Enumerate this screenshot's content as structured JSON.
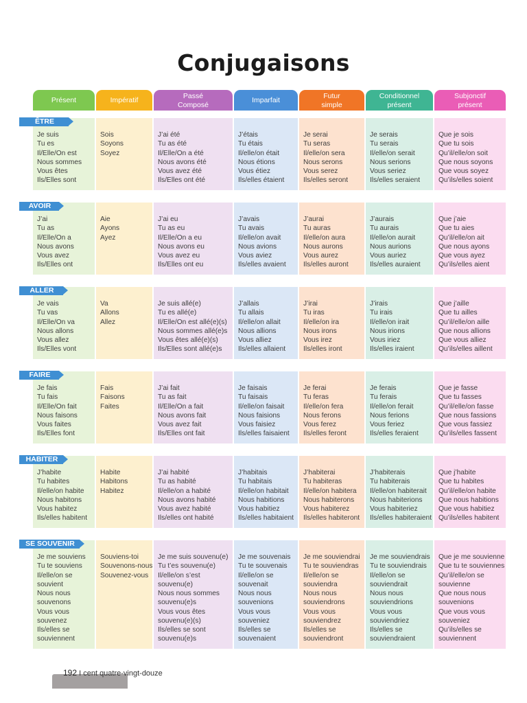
{
  "title": "Conjugaisons",
  "columns": [
    {
      "label": "Présent",
      "color": "#7ec850",
      "bg": "#e7f3d9"
    },
    {
      "label": "Impératif",
      "color": "#f6b31c",
      "bg": "#fdf0cf"
    },
    {
      "label": "Passé\nComposé",
      "color": "#b66bbd",
      "bg": "#efe0f1"
    },
    {
      "label": "Imparfait",
      "color": "#4a8fd8",
      "bg": "#dbe7f6"
    },
    {
      "label": "Futur\nsimple",
      "color": "#f07526",
      "bg": "#fde2cf"
    },
    {
      "label": "Conditionnel\nprésent",
      "color": "#3fb593",
      "bg": "#d9efe6"
    },
    {
      "label": "Subjonctif\nprésent",
      "color": "#ea5db6",
      "bg": "#fbdcf0"
    }
  ],
  "verbs": [
    {
      "name": "ÊTRE",
      "forms": [
        [
          "Je suis",
          "Tu es",
          "Il/Elle/On est",
          "Nous sommes",
          "Vous êtes",
          "Ils/Elles sont"
        ],
        [
          "Sois",
          "Soyons",
          "Soyez"
        ],
        [
          "J’ai été",
          "Tu as été",
          "Il/Elle/On a été",
          "Nous avons été",
          "Vous avez été",
          "Ils/Elles ont été"
        ],
        [
          "J’étais",
          "Tu étais",
          "Il/elle/on était",
          "Nous étions",
          "Vous étiez",
          "Ils/elles étaient"
        ],
        [
          "Je serai",
          "Tu seras",
          "Il/elle/on sera",
          "Nous serons",
          "Vous serez",
          "Ils/elles seront"
        ],
        [
          "Je serais",
          "Tu serais",
          "Il/elle/on serait",
          "Nous serions",
          "Vous seriez",
          "Ils/elles seraient"
        ],
        [
          "Que je sois",
          "Que tu sois",
          "Qu’il/elle/on soit",
          "Que nous soyons",
          "Que vous soyez",
          "Qu’ils/elles soient"
        ]
      ]
    },
    {
      "name": "AVOIR",
      "forms": [
        [
          "J’ai",
          "Tu as",
          "Il/Elle/On a",
          "Nous avons",
          "Vous avez",
          "Ils/Elles ont"
        ],
        [
          "Aie",
          "Ayons",
          "Ayez"
        ],
        [
          "J’ai eu",
          "Tu as eu",
          "Il/Elle/On a eu",
          "Nous avons eu",
          "Vous avez eu",
          "Ils/Elles ont eu"
        ],
        [
          "J’avais",
          "Tu avais",
          "Il/elle/on avait",
          "Nous avions",
          "Vous aviez",
          "Ils/elles avaient"
        ],
        [
          "J’aurai",
          "Tu auras",
          "Il/elle/on aura",
          "Nous aurons",
          "Vous aurez",
          "Ils/elles auront"
        ],
        [
          "J’aurais",
          "Tu aurais",
          "Il/elle/on aurait",
          "Nous aurions",
          "Vous auriez",
          "Ils/elles auraient"
        ],
        [
          "Que j’aie",
          "Que tu aies",
          "Qu’il/elle/on ait",
          "Que nous ayons",
          "Que vous ayez",
          "Qu’ils/elles aient"
        ]
      ]
    },
    {
      "name": "ALLER",
      "forms": [
        [
          "Je vais",
          "Tu vas",
          "Il/Elle/On va",
          "Nous allons",
          "Vous allez",
          "Ils/Elles vont"
        ],
        [
          "Va",
          "Allons",
          "Allez"
        ],
        [
          "Je suis allé(e)",
          "Tu es allé(e)",
          "Il/Elle/On est allé(e)(s)",
          "Nous sommes allé(e)s",
          "Vous êtes allé(e)(s)",
          "Ils/Elles sont allé(e)s"
        ],
        [
          "J’allais",
          "Tu allais",
          "Il/elle/on allait",
          "Nous allions",
          "Vous alliez",
          "Ils/elles allaient"
        ],
        [
          "J’irai",
          "Tu iras",
          "Il/elle/on ira",
          "Nous irons",
          "Vous irez",
          "Ils/elles iront"
        ],
        [
          "J’irais",
          "Tu irais",
          "Il/elle/on irait",
          "Nous irions",
          "Vous iriez",
          "Ils/elles iraient"
        ],
        [
          "Que j’aille",
          "Que tu ailles",
          "Qu’il/elle/on aille",
          "Que nous allions",
          "Que vous alliez",
          "Qu’ils/elles aillent"
        ]
      ]
    },
    {
      "name": "FAIRE",
      "forms": [
        [
          "Je fais",
          "Tu fais",
          "Il/Elle/On fait",
          "Nous faisons",
          "Vous faites",
          "Ils/Elles font"
        ],
        [
          "Fais",
          "Faisons",
          "Faites"
        ],
        [
          "J’ai fait",
          "Tu as fait",
          "Il/Elle/On a fait",
          "Nous avons fait",
          "Vous avez fait",
          "Ils/Elles ont fait"
        ],
        [
          "Je faisais",
          "Tu faisais",
          "Il/elle/on faisait",
          "Nous faisions",
          "Vous faisiez",
          "Ils/elles faisaient"
        ],
        [
          "Je ferai",
          "Tu feras",
          "Il/elle/on fera",
          "Nous ferons",
          "Vous ferez",
          "Ils/elles feront"
        ],
        [
          "Je ferais",
          "Tu ferais",
          "Il/elle/on ferait",
          "Nous ferions",
          "Vous feriez",
          "Ils/elles feraient"
        ],
        [
          "Que je fasse",
          "Que tu fasses",
          "Qu’il/elle/on fasse",
          "Que nous fassions",
          "Que vous fassiez",
          "Qu’ils/elles fassent"
        ]
      ]
    },
    {
      "name": "HABITER",
      "forms": [
        [
          "J’habite",
          "Tu habites",
          "Il/elle/on habite",
          "Nous habitons",
          "Vous habitez",
          "Ils/elles habitent"
        ],
        [
          "Habite",
          "Habitons",
          "Habitez"
        ],
        [
          "J’ai habité",
          "Tu as habité",
          "Il/elle/on a habité",
          "Nous avons habité",
          "Vous avez habité",
          "Ils/elles ont habité"
        ],
        [
          "J’habitais",
          "Tu habitais",
          "Il/elle/on habitait",
          "Nous habitions",
          "Vous habitiez",
          "Ils/elles habitaient"
        ],
        [
          "J’habiterai",
          "Tu habiteras",
          "Il/elle/on habitera",
          "Nous habiterons",
          "Vous habiterez",
          "Ils/elles habiteront"
        ],
        [
          "J’habiterais",
          "Tu habiterais",
          "Il/elle/on habiterait",
          "Nous habiterions",
          "Vous habiteriez",
          "Ils/elles habiteraient"
        ],
        [
          "Que j’habite",
          "Que tu habites",
          "Qu’il/elle/on habite",
          "Que nous habitions",
          "Que vous habitiez",
          "Qu’ils/elles habitent"
        ]
      ]
    },
    {
      "name": "SE SOUVENIR",
      "forms": [
        [
          "Je me souviens",
          "Tu te souviens",
          "Il/elle/on se",
          "souvient",
          "Nous nous",
          "souvenons",
          "Vous vous",
          "souvenez",
          "Ils/elles se",
          "souviennent"
        ],
        [
          "Souviens-toi",
          "Souvenons-nous",
          "Souvenez-vous"
        ],
        [
          "Je me suis souvenu(e)",
          "Tu t’es souvenu(e)",
          "Il/elle/on s’est",
          "souvenu(e)",
          "Nous nous sommes",
          "souvenu(e)s",
          "Vous vous êtes",
          "souvenu(e)(s)",
          "Ils/elles se sont",
          "souvenu(e)s"
        ],
        [
          "Je me souvenais",
          "Tu te souvenais",
          "Il/elle/on se",
          "souvenait",
          "Nous nous",
          "souvenions",
          "Vous vous",
          "souveniez",
          "Ils/elles se",
          "souvenaient"
        ],
        [
          "Je me souviendrai",
          "Tu te souviendras",
          "Il/elle/on se",
          "souviendra",
          "Nous nous",
          "souviendrons",
          "Vous vous",
          "souviendrez",
          "Ils/elles se",
          "souviendront"
        ],
        [
          "Je me souviendrais",
          "Tu te souviendrais",
          "Il/elle/on se",
          "souviendrait",
          "Nous nous",
          "souviendrions",
          "Vous vous",
          "souviendriez",
          "Ils/elles se",
          "souviendraient"
        ],
        [
          "Que je me souvienne",
          "Que tu te souviennes",
          "Qu’il/elle/on se",
          "souvienne",
          "Que nous nous",
          "souvenions",
          "Que vous vous",
          "souveniez",
          "Qu’ils/elles se",
          "souviennent"
        ]
      ]
    }
  ],
  "footer": {
    "page_number": "192",
    "separator": "I",
    "page_words": "cent quatre-vingt-douze"
  }
}
